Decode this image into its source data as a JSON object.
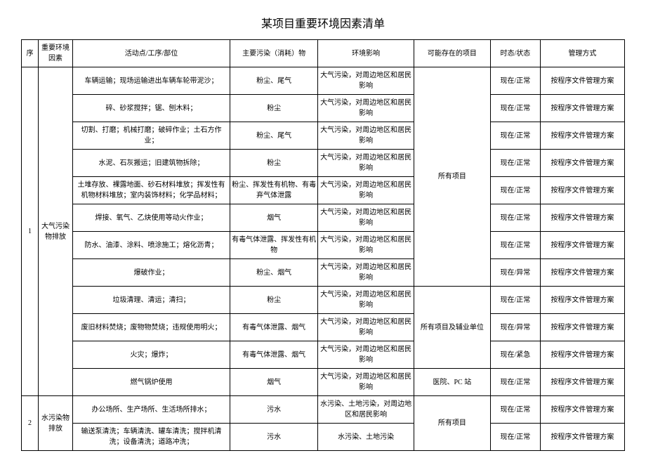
{
  "title": "某项目重要环境因素清单",
  "headers": {
    "seq": "序",
    "factor": "重要环境因素",
    "activity": "活动点/工序/部位",
    "pollutant": "主要污染（消耗）物",
    "impact": "环境影响",
    "project": "可能存在的项目",
    "status": "时态/状态",
    "manage": "管理方式"
  },
  "groups": [
    {
      "seq": "1",
      "factor": "大气污染物排放",
      "rows": [
        {
          "activity": "车辆运输；现场运输进出车辆车轮带泥沙；",
          "pollutant": "粉尘、尾气",
          "impact": "大气污染，对周边地区和居民影响",
          "project": "",
          "status": "现在/正常",
          "manage": "按程序文件管理方案"
        },
        {
          "activity": "碎、砂浆搅拌；锯、刨木料；",
          "pollutant": "粉尘",
          "impact": "大气污染，对周边地区和居民影响",
          "project": "",
          "status": "现在/正常",
          "manage": "按程序文件管理方案"
        },
        {
          "activity": "切割、打磨；机械打磨；破碎作业；土石方作业；",
          "pollutant": "粉尘、尾气",
          "impact": "大气污染，对周边地区和居民影响",
          "project": "",
          "status": "现在/正常",
          "manage": "按程序文件管理方案"
        },
        {
          "activity": "水泥、石灰搬运；旧建筑物拆除；",
          "pollutant": "粉尘",
          "impact": "大气污染，对周边地区和居民影响",
          "project": "所有项目",
          "status": "现在/正常",
          "manage": "按程序文件管理方案"
        },
        {
          "activity": "土堆存放、裸露地面、砂石材料堆放；挥发性有机物材料堆放；室内装饰材料；化学品材料；",
          "pollutant": "粉尘、挥发性有机物、有毒弃气体泄露",
          "impact": "大气污染，对周边地区和居民影响",
          "project": "",
          "status": "现在/正常",
          "manage": "按程序文件管理方案"
        },
        {
          "activity": "焊接、氧气、乙炔使用等动火作业；",
          "pollutant": "烟气",
          "impact": "大气污染，对周边地区和居民影响",
          "project": "",
          "status": "现在/正常",
          "manage": "按程序文件管理方案"
        },
        {
          "activity": "防水、油漆、涂料、喷涂施工；熔化沥青；",
          "pollutant": "有毒气体泄露、挥发性有机物",
          "impact": "大气污染，对周边地区和居民影响",
          "project": "",
          "status": "现在/正常",
          "manage": "按程序文件管理方案"
        },
        {
          "activity": "爆破作业；",
          "pollutant": "粉尘、烟气",
          "impact": "大气污染，对周边地区和居民影响",
          "project": "",
          "status": "现在/异常",
          "manage": "按程序文件管理方案"
        },
        {
          "activity": "垃圾清理、清运；清扫；",
          "pollutant": "粉尘",
          "impact": "大气污染，对周边地区和居民影响",
          "project": "",
          "status": "现在/正常",
          "manage": "按程序文件管理方案"
        },
        {
          "activity": "废旧材料焚烧；废物物焚烧；违规使用明火；",
          "pollutant": "有毒气体泄露、烟气",
          "impact": "大气污染，对周边地区和居民影响",
          "project": "所有项目及辅业单位",
          "status": "现在/异常",
          "manage": "按程序文件管理方案"
        },
        {
          "activity": "火灾；爆炸；",
          "pollutant": "有毒气体泄露、烟气",
          "impact": "大气污染，对周边地区和居民影响",
          "project": "",
          "status": "现在/紧急",
          "manage": "按程序文件管理方案"
        },
        {
          "activity": "燃气锅炉使用",
          "pollutant": "烟气",
          "impact": "大气污染，对周边地区和居民影响",
          "project": "医院、PC 站",
          "status": "现在/正常",
          "manage": "按程序文件管理方案"
        }
      ],
      "projectSpans": [
        {
          "start": 0,
          "span": 8,
          "text": "所有项目"
        },
        {
          "start": 8,
          "span": 3,
          "text": "所有项目及辅业单位"
        },
        {
          "start": 11,
          "span": 1,
          "text": "医院、PC 站"
        }
      ]
    },
    {
      "seq": "2",
      "factor": "水污染物排放",
      "rows": [
        {
          "activity": "办公场所、生产场所、生活场所排水；",
          "pollutant": "污水",
          "impact": "水污染、土地污染，对周边地区和居民影响",
          "project": "所有项目",
          "status": "现在/正常",
          "manage": "按程序文件管理方案"
        },
        {
          "activity": "输送泵清洗；车辆清洗、罐车清洗；搅拌机清洗；设备清洗；道路冲洗；",
          "pollutant": "污水",
          "impact": "水污染、土地污染",
          "project": "",
          "status": "现在/正常",
          "manage": "按程序文件管理方案"
        }
      ],
      "projectSpans": [
        {
          "start": 0,
          "span": 2,
          "text": "所有项目"
        }
      ]
    }
  ]
}
